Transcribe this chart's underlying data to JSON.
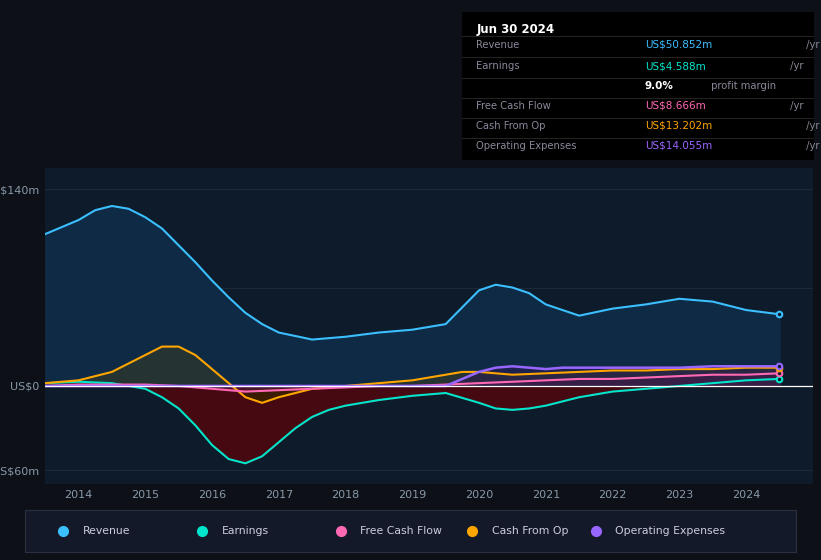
{
  "bg_color": "#0d1117",
  "chart_bg": "#0d1b2a",
  "grid_color": "#1e2d3d",
  "zero_line_color": "#ffffff",
  "ylim": [
    -70,
    155
  ],
  "xlim": [
    2013.5,
    2025.0
  ],
  "xtick_years": [
    2014,
    2015,
    2016,
    2017,
    2018,
    2019,
    2020,
    2021,
    2022,
    2023,
    2024
  ],
  "series": {
    "revenue": {
      "color": "#3bbfff",
      "fill_color": "#0e2a45",
      "x": [
        2013.5,
        2014.0,
        2014.25,
        2014.5,
        2014.75,
        2015.0,
        2015.25,
        2015.5,
        2015.75,
        2016.0,
        2016.25,
        2016.5,
        2016.75,
        2017.0,
        2017.5,
        2018.0,
        2018.5,
        2019.0,
        2019.5,
        2020.0,
        2020.25,
        2020.5,
        2020.75,
        2021.0,
        2021.5,
        2022.0,
        2022.5,
        2023.0,
        2023.5,
        2024.0,
        2024.5
      ],
      "y": [
        108,
        118,
        125,
        128,
        126,
        120,
        112,
        100,
        88,
        75,
        63,
        52,
        44,
        38,
        33,
        35,
        38,
        40,
        44,
        68,
        72,
        70,
        66,
        58,
        50,
        55,
        58,
        62,
        60,
        54,
        51
      ]
    },
    "earnings": {
      "color": "#00e5cc",
      "fill_color": "#4a0810",
      "x": [
        2013.5,
        2014.0,
        2014.5,
        2015.0,
        2015.25,
        2015.5,
        2015.75,
        2016.0,
        2016.25,
        2016.5,
        2016.75,
        2017.0,
        2017.25,
        2017.5,
        2017.75,
        2018.0,
        2018.5,
        2019.0,
        2019.5,
        2020.0,
        2020.25,
        2020.5,
        2020.75,
        2021.0,
        2021.5,
        2022.0,
        2022.5,
        2023.0,
        2023.5,
        2024.0,
        2024.5
      ],
      "y": [
        2,
        3,
        2,
        -2,
        -8,
        -16,
        -28,
        -42,
        -52,
        -55,
        -50,
        -40,
        -30,
        -22,
        -17,
        -14,
        -10,
        -7,
        -5,
        -12,
        -16,
        -17,
        -16,
        -14,
        -8,
        -4,
        -2,
        0,
        2,
        4,
        5
      ]
    },
    "cash_from_op": {
      "color": "#ffa500",
      "fill_color": "#2a2000",
      "x": [
        2013.5,
        2014.0,
        2014.5,
        2015.0,
        2015.25,
        2015.5,
        2015.75,
        2016.0,
        2016.25,
        2016.5,
        2016.75,
        2017.0,
        2017.5,
        2018.0,
        2018.5,
        2019.0,
        2019.25,
        2019.5,
        2019.75,
        2020.0,
        2020.5,
        2021.0,
        2021.5,
        2022.0,
        2022.5,
        2023.0,
        2023.5,
        2024.0,
        2024.5
      ],
      "y": [
        2,
        4,
        10,
        22,
        28,
        28,
        22,
        12,
        2,
        -8,
        -12,
        -8,
        -2,
        0,
        2,
        4,
        6,
        8,
        10,
        10,
        8,
        9,
        10,
        11,
        11,
        12,
        12,
        13,
        13
      ]
    },
    "free_cash_flow": {
      "color": "#ff69b4",
      "x": [
        2013.5,
        2014.0,
        2014.5,
        2015.0,
        2015.5,
        2016.0,
        2016.5,
        2017.0,
        2017.5,
        2018.0,
        2018.5,
        2019.0,
        2019.5,
        2020.0,
        2020.5,
        2021.0,
        2021.5,
        2022.0,
        2022.5,
        2023.0,
        2023.5,
        2024.0,
        2024.5
      ],
      "y": [
        0,
        1,
        1,
        1,
        0,
        -2,
        -4,
        -3,
        -2,
        -1,
        0,
        0,
        1,
        2,
        3,
        4,
        5,
        5,
        6,
        7,
        8,
        8,
        9
      ]
    },
    "operating_expenses": {
      "color": "#9966ff",
      "x": [
        2013.5,
        2014.0,
        2014.5,
        2015.0,
        2015.5,
        2016.0,
        2016.5,
        2017.0,
        2017.5,
        2018.0,
        2018.5,
        2019.0,
        2019.5,
        2020.0,
        2020.25,
        2020.5,
        2020.75,
        2021.0,
        2021.25,
        2021.5,
        2022.0,
        2022.5,
        2023.0,
        2023.5,
        2024.0,
        2024.5
      ],
      "y": [
        0,
        0,
        0,
        0,
        0,
        0,
        0,
        0,
        0,
        0,
        0,
        0,
        0,
        10,
        13,
        14,
        13,
        12,
        13,
        13,
        13,
        13,
        13,
        14,
        14,
        14
      ]
    }
  },
  "info_box": {
    "date": "Jun 30 2024",
    "rows": [
      {
        "label": "Revenue",
        "value": "US$50.852m",
        "unit": "/yr",
        "value_color": "#3bbfff"
      },
      {
        "label": "Earnings",
        "value": "US$4.588m",
        "unit": "/yr",
        "value_color": "#00e5cc"
      },
      {
        "label": "",
        "value": "9.0%",
        "unit": "profit margin",
        "value_color": "#ffffff"
      },
      {
        "label": "Free Cash Flow",
        "value": "US$8.666m",
        "unit": "/yr",
        "value_color": "#ff69b4"
      },
      {
        "label": "Cash From Op",
        "value": "US$13.202m",
        "unit": "/yr",
        "value_color": "#ffa500"
      },
      {
        "label": "Operating Expenses",
        "value": "US$14.055m",
        "unit": "/yr",
        "value_color": "#9966ff"
      }
    ]
  },
  "legend": [
    {
      "label": "Revenue",
      "color": "#3bbfff"
    },
    {
      "label": "Earnings",
      "color": "#00e5cc"
    },
    {
      "label": "Free Cash Flow",
      "color": "#ff69b4"
    },
    {
      "label": "Cash From Op",
      "color": "#ffa500"
    },
    {
      "label": "Operating Expenses",
      "color": "#9966ff"
    }
  ]
}
